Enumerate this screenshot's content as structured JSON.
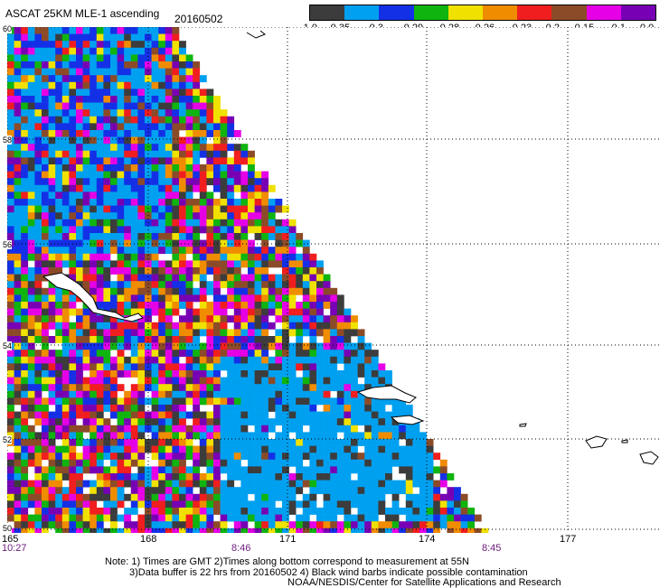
{
  "header": {
    "title": "ASCAT 25KM MLE-1 ascending",
    "date": "20160502"
  },
  "colorbar": {
    "colors": [
      "#3c3c3c",
      "#00a0f0",
      "#1430e6",
      "#0fb40f",
      "#f0e100",
      "#f08c00",
      "#f01e1e",
      "#8c4b28",
      "#e600e6",
      "#7800b4"
    ],
    "labels": [
      "-1.0",
      "-0.35",
      "-0.3",
      "-0.29",
      "-0.28",
      "-0.26",
      "-0.23",
      "-0.2",
      "-0.15",
      "-0.1",
      "0.0"
    ]
  },
  "map": {
    "lon_labels": [
      "165",
      "168",
      "171",
      "174",
      "177"
    ],
    "lat_labels": [
      "60",
      "58",
      "56",
      "54",
      "52",
      "50"
    ],
    "time_labels": [
      "10:27",
      "8:46",
      "8:45"
    ],
    "background_fill": "#00a0f0"
  },
  "notes": [
    "Note: 1) Times are GMT 2)Times along bottom correspond to measurement at 55N",
    "3)Data buffer is 22 hrs from 20160502 4) Black wind barbs indicate possible contamination",
    "NOAA/NESDIS/Center for Satellite Applications and Research"
  ]
}
